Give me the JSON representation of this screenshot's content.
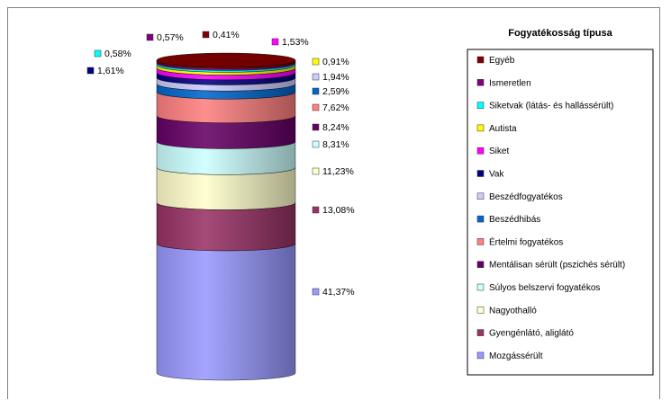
{
  "chart_data": {
    "type": "stacked-cylinder",
    "legend_title": "Fogyatékosság típusa",
    "legend_position": "right",
    "series": [
      {
        "name": "Mozgássérült",
        "value": 41.37,
        "label": "41,37%",
        "color": "#9999FF"
      },
      {
        "name": "Gyengénlátó, aliglátó",
        "value": 13.08,
        "label": "13,08%",
        "color": "#993366"
      },
      {
        "name": "Nagyothalló",
        "value": 11.23,
        "label": "11,23%",
        "color": "#FFFFCC"
      },
      {
        "name": "Súlyos belszervi fogyatékos",
        "value": 8.31,
        "label": "8,31%",
        "color": "#CCFFFF"
      },
      {
        "name": "Mentálisan sérült (pszichés sérült)",
        "value": 8.24,
        "label": "8,24%",
        "color": "#660066"
      },
      {
        "name": "Értelmi fogyatékos",
        "value": 7.62,
        "label": "7,62%",
        "color": "#FF8080"
      },
      {
        "name": "Beszédhibás",
        "value": 2.59,
        "label": "2,59%",
        "color": "#0066CC"
      },
      {
        "name": "Beszédfogyatékos",
        "value": 1.94,
        "label": "1,94%",
        "color": "#CCCCFF"
      },
      {
        "name": "Vak",
        "value": 1.61,
        "label": "1,61%",
        "color": "#000080"
      },
      {
        "name": "Siket",
        "value": 1.53,
        "label": "1,53%",
        "color": "#FF00FF"
      },
      {
        "name": "Autista",
        "value": 0.91,
        "label": "0,91%",
        "color": "#FFFF00"
      },
      {
        "name": "Siketvak (látás- és hallássérült)",
        "value": 0.58,
        "label": "0,58%",
        "color": "#00FFFF"
      },
      {
        "name": "Ismeretlen",
        "value": 0.57,
        "label": "0,57%",
        "color": "#800080"
      },
      {
        "name": "Egyéb",
        "value": 0.41,
        "label": "0,41%",
        "color": "#800000"
      }
    ]
  }
}
